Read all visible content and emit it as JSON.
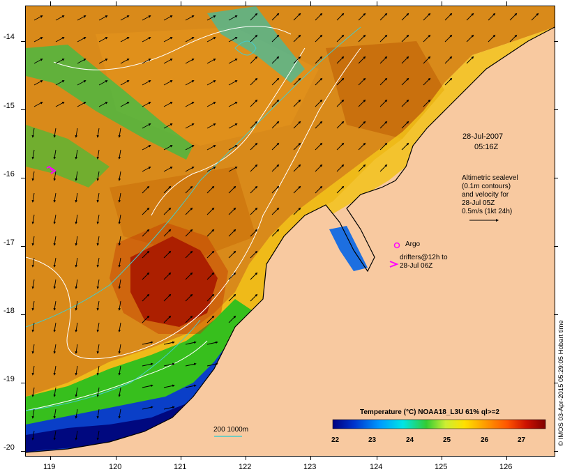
{
  "map": {
    "y_ticks": [
      "-14",
      "-15",
      "-16",
      "-17",
      "-18",
      "-19",
      "-20"
    ],
    "x_ticks": [
      "119",
      "120",
      "121",
      "122",
      "123",
      "124",
      "125",
      "126"
    ]
  },
  "annotations": {
    "date": "28-Jul-2007",
    "time": "05:16Z",
    "altimetry_lines": [
      "Altimetric sealevel",
      "(0.1m contours)",
      "and velocity for",
      "28-Jul 05Z",
      "0.5m/s (1kt 24h)"
    ],
    "argo": "Argo",
    "drifters_line1": "drifters@12h to",
    "drifters_line2": "28-Jul 06Z",
    "bathymetry": "200  1000m"
  },
  "colorbar": {
    "title": "Temperature (°C) NOAA18_L3U 61% ql>=2",
    "labels": [
      "22",
      "23",
      "24",
      "25",
      "26",
      "27"
    ],
    "colors": [
      "#00007f",
      "#0033cc",
      "#0099ff",
      "#00e5e5",
      "#33cc33",
      "#ccee33",
      "#ffe000",
      "#ff9900",
      "#ff5500",
      "#cc1100",
      "#7f0000"
    ]
  },
  "credit": "© IMOS 03-Apr-2015 05:29:05 Hobart time",
  "colors": {
    "land": "#f8c9a0",
    "warm": "#d97a10",
    "hot": "#990000",
    "contour": "#ffffff",
    "bathy": "#44cccc",
    "marker": "#ff00ff"
  }
}
